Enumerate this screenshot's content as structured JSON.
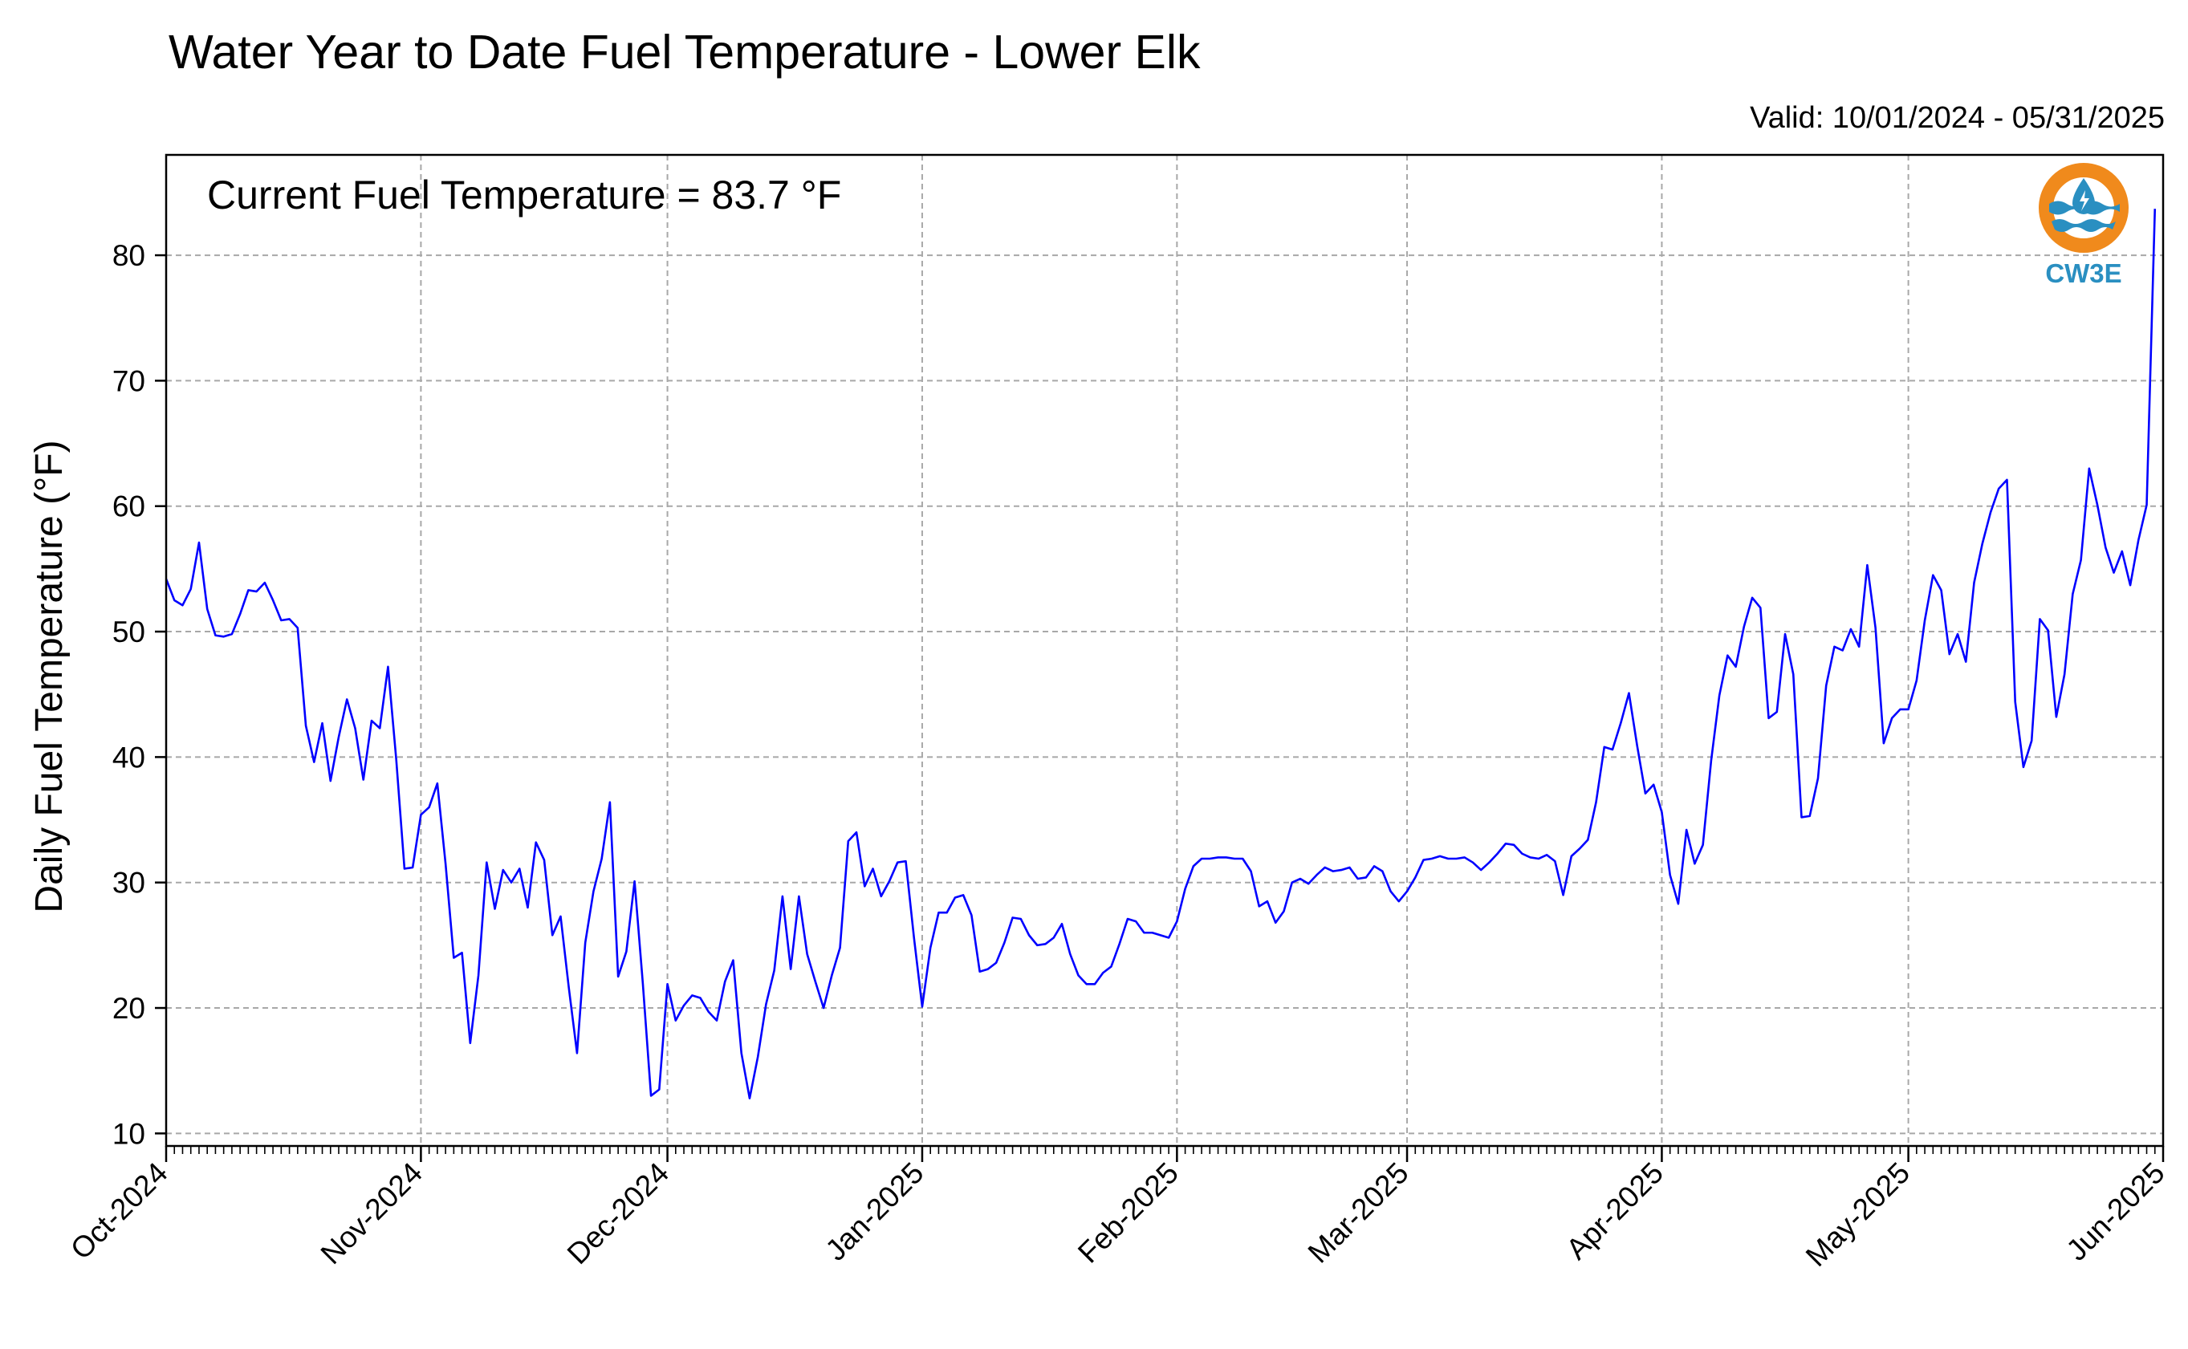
{
  "chart_data": {
    "type": "line",
    "title": "Water Year to Date Fuel Temperature - Lower Elk",
    "subtitle": "Valid: 10/01/2024 - 05/31/2025",
    "annotation": "Current Fuel Temperature = 83.7 °F",
    "xlabel": "",
    "ylabel": "Daily Fuel Temperature (°F)",
    "ylim": [
      9,
      88
    ],
    "xlim": [
      "2024-10-01",
      "2025-06-01"
    ],
    "y_ticks": [
      10,
      20,
      30,
      40,
      50,
      60,
      70,
      80
    ],
    "x_ticks": [
      {
        "date": "2024-10-01",
        "label": "Oct-2024"
      },
      {
        "date": "2024-11-01",
        "label": "Nov-2024"
      },
      {
        "date": "2024-12-01",
        "label": "Dec-2024"
      },
      {
        "date": "2025-01-01",
        "label": "Jan-2025"
      },
      {
        "date": "2025-02-01",
        "label": "Feb-2025"
      },
      {
        "date": "2025-03-01",
        "label": "Mar-2025"
      },
      {
        "date": "2025-04-01",
        "label": "Apr-2025"
      },
      {
        "date": "2025-05-01",
        "label": "May-2025"
      },
      {
        "date": "2025-06-01",
        "label": "Jun-2025"
      }
    ],
    "grid": true,
    "series": [
      {
        "color": "#0000ff",
        "x_start": "2024-10-01",
        "x_step_days": 1,
        "values": [
          54.2,
          52.5,
          52.1,
          53.4,
          57.1,
          51.8,
          49.7,
          49.6,
          49.8,
          51.4,
          53.3,
          53.2,
          53.9,
          52.5,
          50.9,
          51.0,
          50.3,
          42.5,
          39.6,
          42.7,
          38.1,
          41.6,
          44.6,
          42.3,
          38.2,
          42.9,
          42.3,
          47.2,
          39.8,
          31.1,
          31.2,
          35.4,
          36.0,
          37.9,
          31.5,
          24.0,
          24.4,
          17.2,
          22.6,
          31.6,
          27.9,
          31.0,
          30.0,
          31.1,
          28.0,
          33.2,
          31.8,
          25.8,
          27.3,
          21.6,
          16.4,
          25.2,
          29.3,
          31.9,
          36.4,
          22.5,
          24.5,
          30.1,
          22.0,
          13.0,
          13.5,
          21.9,
          19.0,
          20.2,
          21.0,
          20.8,
          19.7,
          19.0,
          22.1,
          23.8,
          16.4,
          12.8,
          16.1,
          20.3,
          23.0,
          28.9,
          23.1,
          28.9,
          24.3,
          22.1,
          20.0,
          22.6,
          24.8,
          33.3,
          34.0,
          29.7,
          31.1,
          28.9,
          30.1,
          31.6,
          31.7,
          25.6,
          20.1,
          24.8,
          27.6,
          27.6,
          28.8,
          29.0,
          27.4,
          22.9,
          23.1,
          23.6,
          25.2,
          27.2,
          27.1,
          25.8,
          25.0,
          25.1,
          25.6,
          26.7,
          24.3,
          22.6,
          21.9,
          21.9,
          22.8,
          23.3,
          25.1,
          27.1,
          26.9,
          26.0,
          26.0,
          25.8,
          25.6,
          26.9,
          29.5,
          31.3,
          31.9,
          31.9,
          32.0,
          32.0,
          31.9,
          31.9,
          30.9,
          28.1,
          28.5,
          26.8,
          27.7,
          30.0,
          30.3,
          29.9,
          30.6,
          31.2,
          30.9,
          31.0,
          31.2,
          30.3,
          30.4,
          31.3,
          30.9,
          29.3,
          28.5,
          29.3,
          30.4,
          31.8,
          31.9,
          32.1,
          31.9,
          31.9,
          32.0,
          31.6,
          31.0,
          31.6,
          32.3,
          33.1,
          33.0,
          32.3,
          32.0,
          31.9,
          32.2,
          31.7,
          29.0,
          32.1,
          32.7,
          33.4,
          36.4,
          40.8,
          40.6,
          42.7,
          45.1,
          40.9,
          37.1,
          37.8,
          35.6,
          30.6,
          28.3,
          34.2,
          31.5,
          33.0,
          39.7,
          44.9,
          48.1,
          47.2,
          50.4,
          52.7,
          51.9,
          43.1,
          43.6,
          49.8,
          46.6,
          35.2,
          35.3,
          38.3,
          45.7,
          48.8,
          48.5,
          50.2,
          48.8,
          55.3,
          50.3,
          41.1,
          43.1,
          43.8,
          43.8,
          46.1,
          50.9,
          54.5,
          53.3,
          48.2,
          49.8,
          47.6,
          53.9,
          57.0,
          59.5,
          61.4,
          62.1,
          44.4,
          39.2,
          41.3,
          51.0,
          50.1,
          43.2,
          46.6,
          53.0,
          55.7,
          63.0,
          60.1,
          56.7,
          54.7,
          56.4,
          53.7,
          57.3,
          60.1,
          83.7
        ]
      }
    ]
  },
  "logo": {
    "text": "CW3E",
    "colors": {
      "ring": "#f08a1c",
      "blue": "#2a8fc1",
      "text": "#2a8fc1"
    }
  }
}
